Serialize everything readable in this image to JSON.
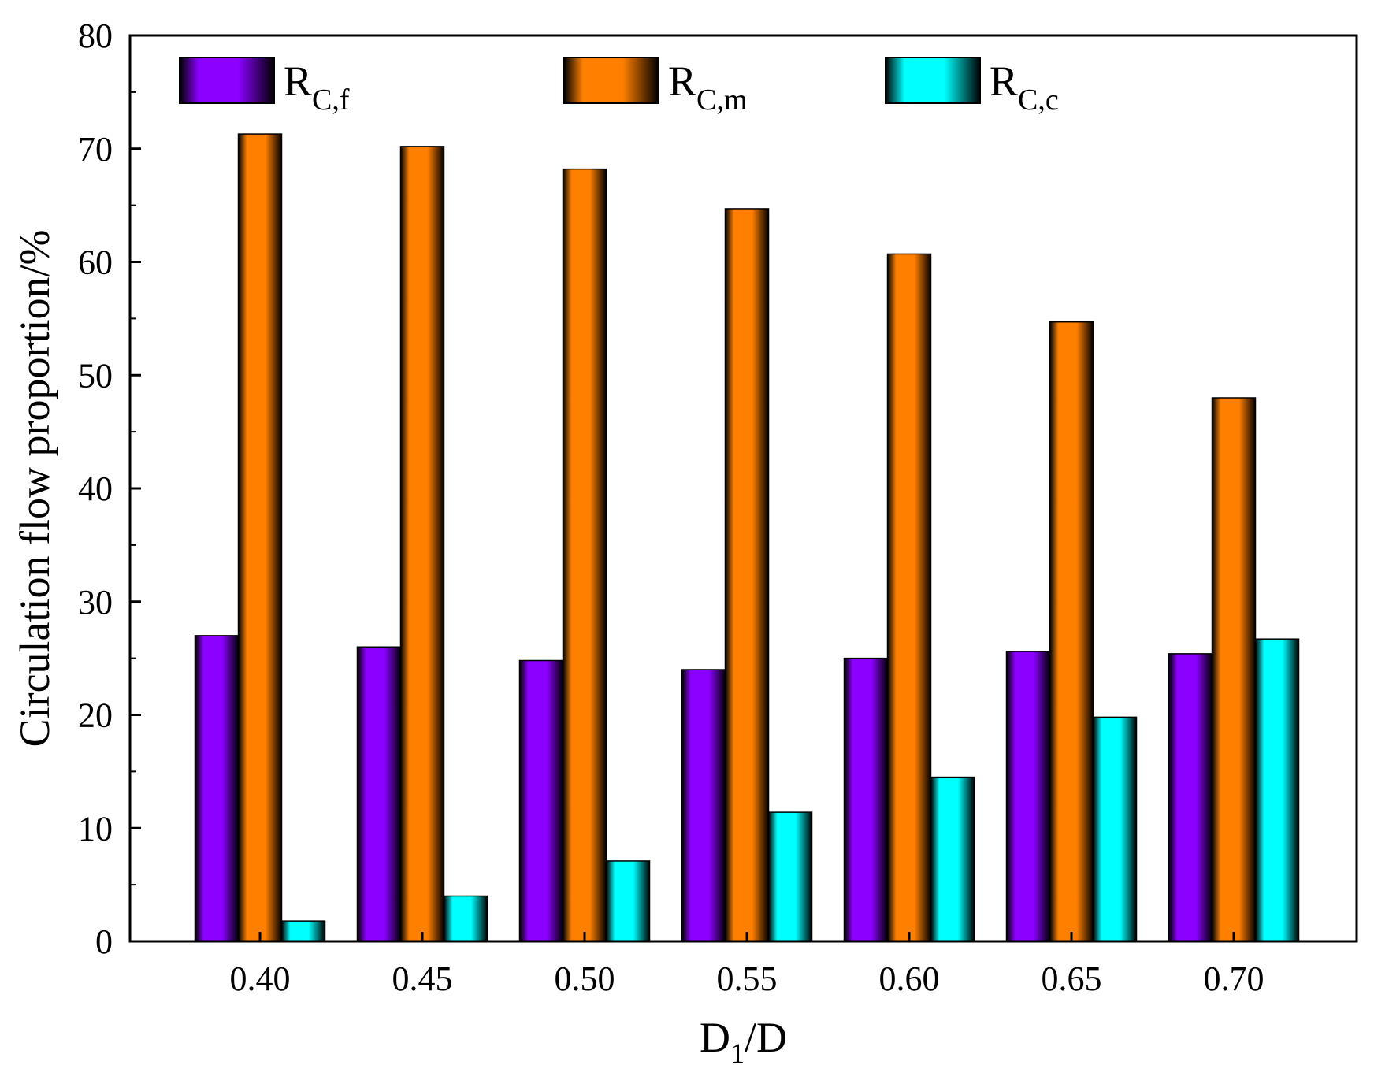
{
  "chart_data": {
    "type": "bar",
    "title": "",
    "xlabel": "D1/D",
    "xlabel_parts": {
      "base": "D",
      "sub": "1",
      "suffix": "/D"
    },
    "ylabel": "Circulation flow proportion/%",
    "categories": [
      "0.40",
      "0.45",
      "0.50",
      "0.55",
      "0.60",
      "0.65",
      "0.70"
    ],
    "ylim": [
      0,
      80
    ],
    "yticks": [
      "0",
      "10",
      "20",
      "30",
      "40",
      "50",
      "60",
      "70",
      "80"
    ],
    "legend_position": "top",
    "series": [
      {
        "name": "RC,f",
        "base": "R",
        "sub": "C,f",
        "color": "#8B00FF",
        "values": [
          27.0,
          26.0,
          24.8,
          24.0,
          25.0,
          25.6,
          25.4
        ]
      },
      {
        "name": "RC,m",
        "base": "R",
        "sub": "C,m",
        "color": "#FF7F00",
        "values": [
          71.3,
          70.2,
          68.2,
          64.7,
          60.7,
          54.7,
          48.0
        ]
      },
      {
        "name": "RC,c",
        "base": "R",
        "sub": "C,c",
        "color": "#00FFFF",
        "values": [
          1.8,
          4.0,
          7.1,
          11.4,
          14.5,
          19.8,
          26.7
        ]
      }
    ]
  }
}
